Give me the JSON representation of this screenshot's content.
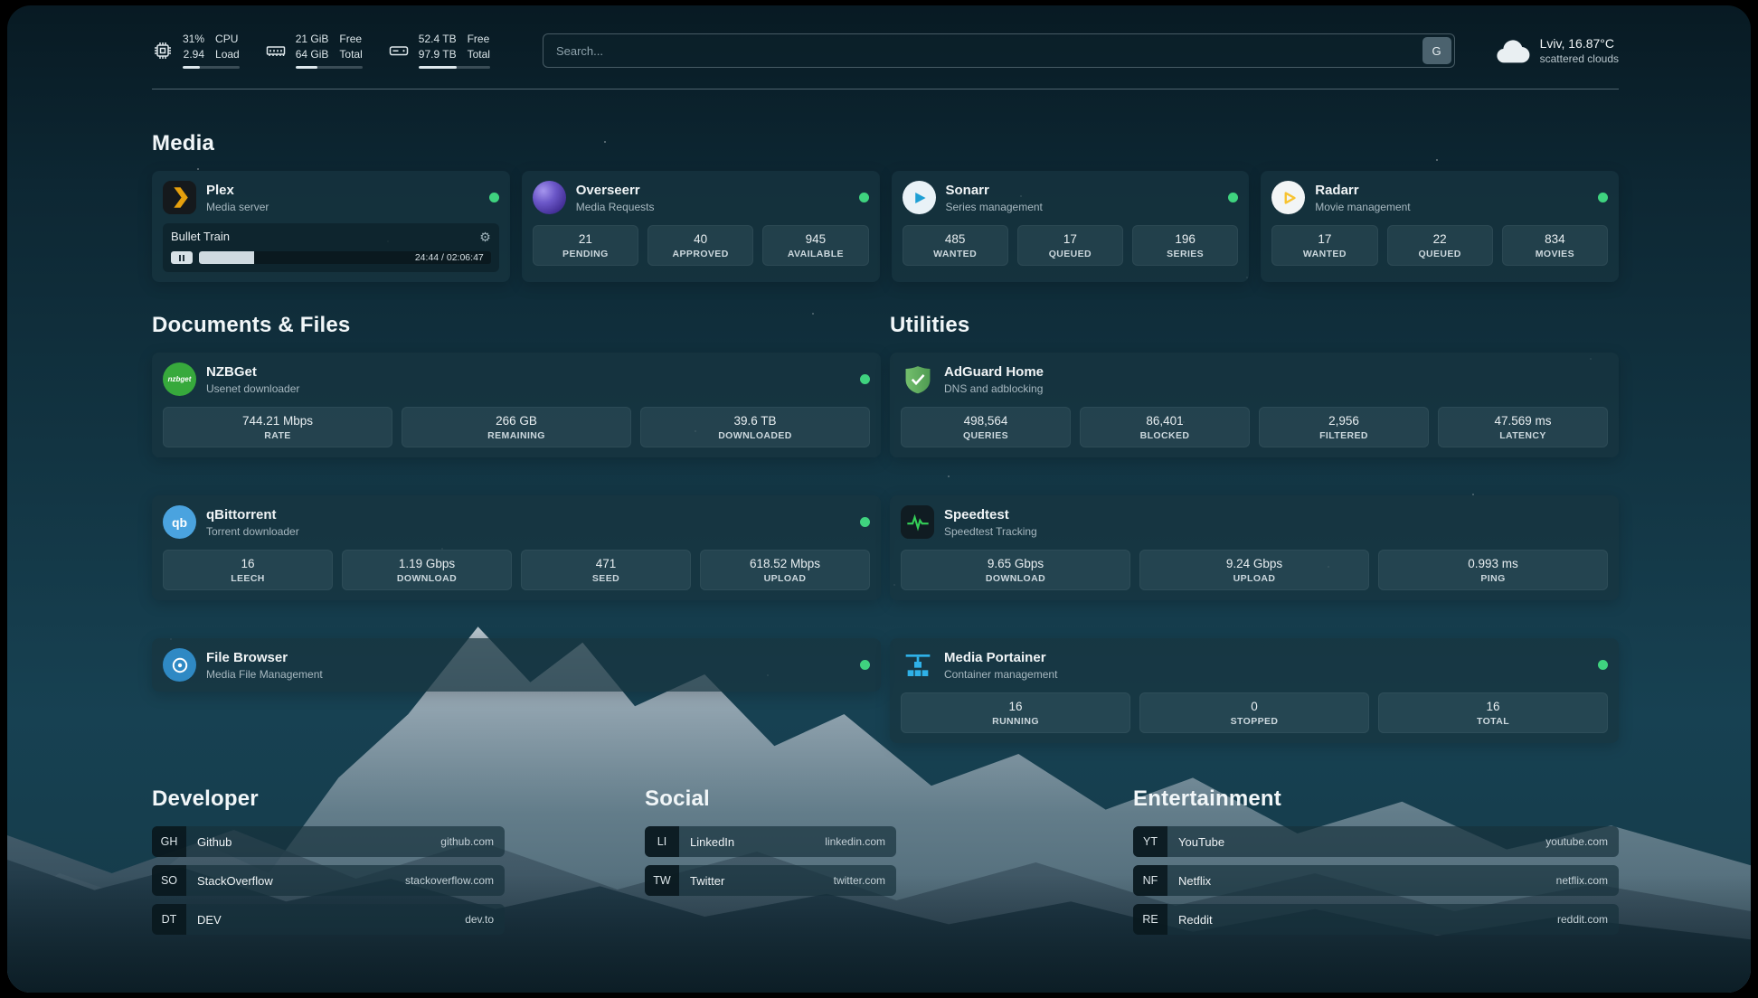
{
  "colors": {
    "status_online": "#3fd37f",
    "plex_accent": "#e5a00d",
    "speedtest_accent": "#34d058",
    "sonarr_accent": "#1e9fd4",
    "radarr_accent": "#f7c331"
  },
  "topbar": {
    "cpu": {
      "percent": "31%",
      "load": "2.94",
      "label_top": "CPU",
      "label_bottom": "Load",
      "bar_percent": 31
    },
    "memory": {
      "free": "21 GiB",
      "total": "64 GiB",
      "label_top": "Free",
      "label_bottom": "Total",
      "bar_percent": 33
    },
    "disk": {
      "free": "52.4 TB",
      "total": "97.9 TB",
      "label_top": "Free",
      "label_bottom": "Total",
      "bar_percent": 53
    },
    "search": {
      "placeholder": "Search...",
      "button_label": "G"
    },
    "weather": {
      "location": "Lviv, 16.87°C",
      "condition": "scattered clouds"
    }
  },
  "media": {
    "title": "Media",
    "plex": {
      "name": "Plex",
      "subtitle": "Media server",
      "now_playing": "Bullet Train",
      "gear_icon": "⚙",
      "time": "24:44 / 02:06:47",
      "progress_percent": 19
    },
    "overseerr": {
      "name": "Overseerr",
      "subtitle": "Media Requests",
      "stats": [
        {
          "value": "21",
          "label": "PENDING"
        },
        {
          "value": "40",
          "label": "APPROVED"
        },
        {
          "value": "945",
          "label": "AVAILABLE"
        }
      ]
    },
    "sonarr": {
      "name": "Sonarr",
      "subtitle": "Series management",
      "stats": [
        {
          "value": "485",
          "label": "WANTED"
        },
        {
          "value": "17",
          "label": "QUEUED"
        },
        {
          "value": "196",
          "label": "SERIES"
        }
      ]
    },
    "radarr": {
      "name": "Radarr",
      "subtitle": "Movie management",
      "stats": [
        {
          "value": "17",
          "label": "WANTED"
        },
        {
          "value": "22",
          "label": "QUEUED"
        },
        {
          "value": "834",
          "label": "MOVIES"
        }
      ]
    }
  },
  "documents": {
    "title": "Documents & Files",
    "nzbget": {
      "name": "NZBGet",
      "subtitle": "Usenet downloader",
      "icon_text": "nzbget",
      "stats": [
        {
          "value": "744.21 Mbps",
          "label": "RATE"
        },
        {
          "value": "266 GB",
          "label": "REMAINING"
        },
        {
          "value": "39.6 TB",
          "label": "DOWNLOADED"
        }
      ]
    },
    "qbittorrent": {
      "name": "qBittorrent",
      "subtitle": "Torrent downloader",
      "icon_text": "qb",
      "stats": [
        {
          "value": "16",
          "label": "LEECH"
        },
        {
          "value": "1.19 Gbps",
          "label": "DOWNLOAD"
        },
        {
          "value": "471",
          "label": "SEED"
        },
        {
          "value": "618.52 Mbps",
          "label": "UPLOAD"
        }
      ]
    },
    "filebrowser": {
      "name": "File Browser",
      "subtitle": "Media File Management"
    }
  },
  "utilities": {
    "title": "Utilities",
    "adguard": {
      "name": "AdGuard Home",
      "subtitle": "DNS and adblocking",
      "stats": [
        {
          "value": "498,564",
          "label": "QUERIES"
        },
        {
          "value": "86,401",
          "label": "BLOCKED"
        },
        {
          "value": "2,956",
          "label": "FILTERED"
        },
        {
          "value": "47.569 ms",
          "label": "LATENCY"
        }
      ]
    },
    "speedtest": {
      "name": "Speedtest",
      "subtitle": "Speedtest Tracking",
      "stats": [
        {
          "value": "9.65 Gbps",
          "label": "DOWNLOAD"
        },
        {
          "value": "9.24 Gbps",
          "label": "UPLOAD"
        },
        {
          "value": "0.993 ms",
          "label": "PING"
        }
      ]
    },
    "portainer": {
      "name": "Media Portainer",
      "subtitle": "Container management",
      "stats": [
        {
          "value": "16",
          "label": "RUNNING"
        },
        {
          "value": "0",
          "label": "STOPPED"
        },
        {
          "value": "16",
          "label": "TOTAL"
        }
      ]
    }
  },
  "bookmarks": {
    "developer": {
      "title": "Developer",
      "items": [
        {
          "abbr": "GH",
          "name": "Github",
          "url": "github.com"
        },
        {
          "abbr": "SO",
          "name": "StackOverflow",
          "url": "stackoverflow.com"
        },
        {
          "abbr": "DT",
          "name": "DEV",
          "url": "dev.to"
        }
      ]
    },
    "social": {
      "title": "Social",
      "items": [
        {
          "abbr": "LI",
          "name": "LinkedIn",
          "url": "linkedin.com"
        },
        {
          "abbr": "TW",
          "name": "Twitter",
          "url": "twitter.com"
        }
      ]
    },
    "entertainment": {
      "title": "Entertainment",
      "items": [
        {
          "abbr": "YT",
          "name": "YouTube",
          "url": "youtube.com"
        },
        {
          "abbr": "NF",
          "name": "Netflix",
          "url": "netflix.com"
        },
        {
          "abbr": "RE",
          "name": "Reddit",
          "url": "reddit.com"
        }
      ]
    }
  }
}
